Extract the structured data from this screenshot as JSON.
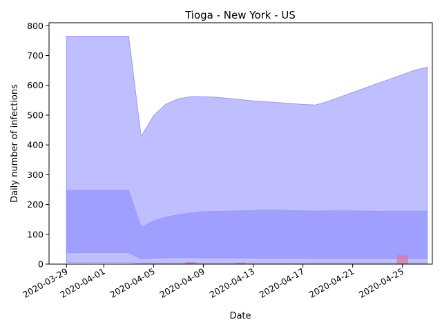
{
  "chart_data": {
    "type": "area",
    "title": "Tioga - New York - US",
    "xlabel": "Date",
    "ylabel": "Daily number of infections",
    "x_start": "2020-03-29",
    "x_end": "2020-04-27",
    "xlim": [
      "2020-03-29",
      "2020-04-28"
    ],
    "ylim": [
      0,
      810
    ],
    "x_ticks": [
      "2020-03-29",
      "2020-04-01",
      "2020-04-05",
      "2020-04-09",
      "2020-04-13",
      "2020-04-17",
      "2020-04-21",
      "2020-04-25"
    ],
    "y_ticks": [
      0,
      100,
      200,
      300,
      400,
      500,
      600,
      700,
      800
    ],
    "grid": false,
    "colors": {
      "outer_band": "#bfbfff",
      "outer_band_edge": "#9a9aee",
      "inner_band": "#9999ff",
      "bar": "#d97aa6"
    },
    "series": [
      {
        "name": "",
        "upper": [
          765,
          765,
          765,
          765,
          765,
          765,
          428,
          498,
          537,
          555,
          562,
          562,
          560,
          556,
          552,
          548,
          545,
          542,
          539,
          536,
          534,
          546,
          561,
          576,
          591,
          606,
          621,
          636,
          651,
          661
        ],
        "lower": [
          5,
          5,
          5,
          5,
          5,
          5,
          3,
          3,
          3,
          3,
          3,
          3,
          3,
          3,
          3,
          3,
          3,
          3,
          3,
          3,
          3,
          3,
          3,
          3,
          3,
          3,
          3,
          3,
          3,
          3
        ]
      },
      {
        "name": "",
        "upper": [
          248,
          248,
          248,
          248,
          248,
          248,
          124,
          145,
          158,
          166,
          172,
          176,
          177,
          178,
          179,
          180,
          182,
          182,
          180,
          179,
          178,
          179,
          179,
          179,
          178,
          177,
          178,
          178,
          178,
          178
        ],
        "lower": [
          38,
          38,
          38,
          38,
          38,
          38,
          18,
          20,
          21,
          22,
          22,
          21,
          21,
          21,
          21,
          20,
          20,
          20,
          20,
          20,
          19,
          19,
          19,
          19,
          19,
          19,
          19,
          19,
          19,
          19
        ]
      }
    ],
    "bars": [
      {
        "x": "2020-04-08",
        "value": 7
      },
      {
        "x": "2020-04-12",
        "value": 5
      },
      {
        "x": "2020-04-25",
        "value": 30
      }
    ]
  }
}
